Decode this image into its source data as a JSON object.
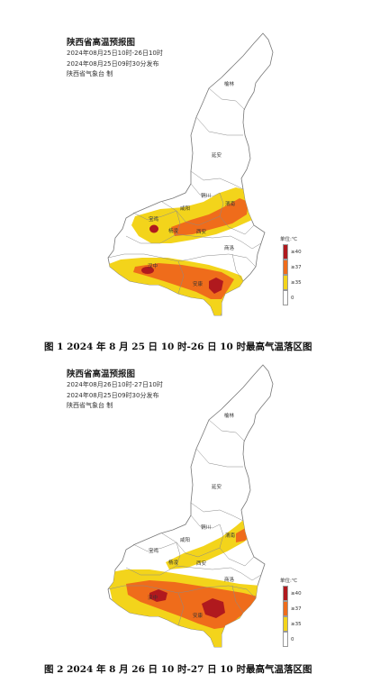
{
  "panels": [
    {
      "title": "陕西省高温预报图",
      "time_range": "2024年08月25日10时-26日10时",
      "issued": "2024年08月25日09时30分发布",
      "agency": "陕西省气象台 制",
      "caption": "图 1  2024 年 8 月 25 日 10 时-26 日 10 时最高气温落区图"
    },
    {
      "title": "陕西省高温预报图",
      "time_range": "2024年08月26日10时-27日10时",
      "issued": "2024年08月25日09时30分发布",
      "agency": "陕西省气象台 制",
      "caption": "图 2  2024 年 8 月 26 日 10 时-27 日 10 时最高气温落区图"
    }
  ],
  "cities": {
    "yulin": "榆林",
    "yanan": "延安",
    "tongchuan": "铜川",
    "weinan": "渭南",
    "xianyang": "咸阳",
    "baoji": "宝鸡",
    "yangling": "杨凌",
    "xian": "西安",
    "shangluo": "商洛",
    "hanzhong": "汉中",
    "ankang": "安康"
  },
  "legend": {
    "unit": "单位:℃",
    "items": [
      {
        "label": "≥40",
        "color": "#b0191e"
      },
      {
        "label": "≥37",
        "color": "#ef6c1b"
      },
      {
        "label": "≥35",
        "color": "#f3d41b"
      },
      {
        "label": "0",
        "color": "#ffffff"
      }
    ]
  },
  "colors": {
    "level_35": "#f3d41b",
    "level_37": "#ef6c1b",
    "level_40": "#b0191e",
    "boundary": "#888888"
  }
}
